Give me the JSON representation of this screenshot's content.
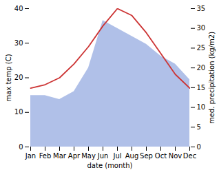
{
  "chart_data": {
    "type": "line",
    "xlabel": "date (month)",
    "ylabel": "max temp (C)",
    "y2label": "med. precipitation (kg/m2)",
    "categories": [
      "Jan",
      "Feb",
      "Mar",
      "Apr",
      "May",
      "Jun",
      "Jul",
      "Aug",
      "Sep",
      "Oct",
      "Nov",
      "Dec"
    ],
    "series": [
      {
        "type": "area",
        "axis": "y2",
        "color": "#b0c0e8",
        "values": [
          13,
          13,
          12,
          14,
          20,
          32,
          30,
          28,
          26,
          23,
          21,
          17
        ]
      },
      {
        "type": "line",
        "color": "#cc3333",
        "values": [
          17,
          18,
          20,
          24,
          29,
          35,
          40,
          38,
          33,
          27,
          21,
          17
        ]
      }
    ],
    "ylim": [
      0,
      40
    ],
    "yticks": [
      0,
      10,
      20,
      30,
      40
    ],
    "y2lim": [
      0,
      35
    ],
    "y2ticks": [
      0,
      5,
      10,
      15,
      20,
      25,
      30,
      35
    ]
  }
}
